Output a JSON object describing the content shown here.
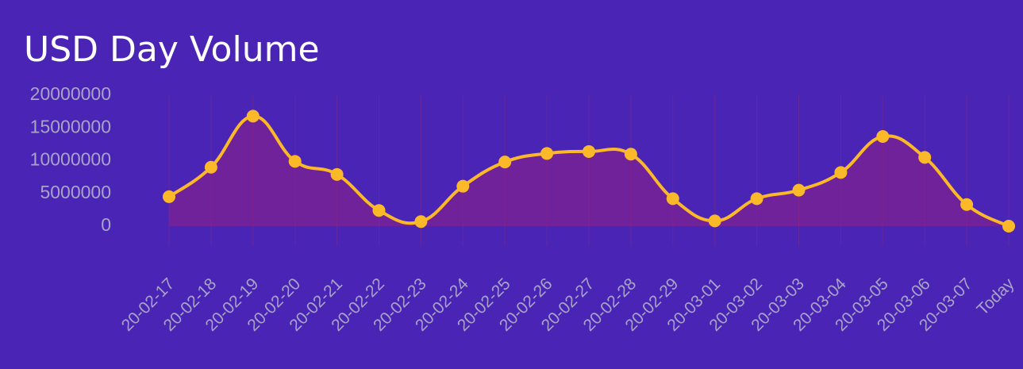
{
  "chart_data": {
    "type": "line",
    "title": "USD Day Volume",
    "categories": [
      "20-02-17",
      "20-02-18",
      "20-02-19",
      "20-02-20",
      "20-02-21",
      "20-02-22",
      "20-02-23",
      "20-02-24",
      "20-02-25",
      "20-02-26",
      "20-02-27",
      "20-02-28",
      "20-02-29",
      "20-03-01",
      "20-03-02",
      "20-03-03",
      "20-03-04",
      "20-03-05",
      "20-03-06",
      "20-03-07",
      "Today"
    ],
    "series": [
      {
        "name": "USD Day Volume",
        "color": "#fbb829",
        "values": [
          4500000,
          9000000,
          16800000,
          9900000,
          7900000,
          2400000,
          700000,
          6100000,
          9800000,
          11100000,
          11400000,
          11000000,
          4200000,
          800000,
          4200000,
          5500000,
          8200000,
          13700000,
          10500000,
          3300000,
          0
        ]
      }
    ],
    "ylim": [
      0,
      20000000
    ],
    "yticks": [
      0,
      5000000,
      10000000,
      15000000,
      20000000
    ],
    "grid": true
  }
}
